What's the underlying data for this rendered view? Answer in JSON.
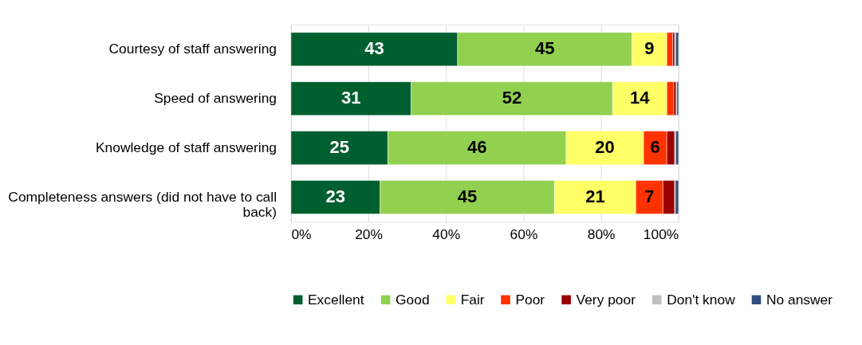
{
  "chart_data": {
    "type": "bar",
    "orientation": "horizontal",
    "stacked": true,
    "categories": [
      "Courtesy of staff answering",
      "Speed of answering",
      "Knowledge of staff answering",
      "Completeness answers (did not have to call back)"
    ],
    "series": [
      {
        "name": "Excellent",
        "color": "#005f2f",
        "values": [
          43,
          31,
          25,
          23
        ],
        "value_labels": [
          "43",
          "31",
          "25",
          "23"
        ]
      },
      {
        "name": "Good",
        "color": "#92d050",
        "values": [
          45,
          52,
          46,
          45
        ],
        "value_labels": [
          "45",
          "52",
          "46",
          "45"
        ]
      },
      {
        "name": "Fair",
        "color": "#ffff66",
        "values": [
          9,
          14,
          20,
          21
        ],
        "value_labels": [
          "9",
          "14",
          "20",
          "21"
        ]
      },
      {
        "name": "Poor",
        "color": "#ff3300",
        "values": [
          1.5,
          1.8,
          6,
          7
        ],
        "value_labels": [
          null,
          null,
          "6",
          "7"
        ]
      },
      {
        "name": "Very poor",
        "color": "#990000",
        "values": [
          0.5,
          0.6,
          2,
          3
        ],
        "value_labels": [
          null,
          null,
          null,
          null
        ]
      },
      {
        "name": "Don't know",
        "color": "#bfbfbf",
        "values": [
          0.3,
          0.2,
          0.3,
          0.2
        ],
        "value_labels": [
          null,
          null,
          null,
          null
        ]
      },
      {
        "name": "No answer",
        "color": "#2f4f7f",
        "values": [
          0.7,
          0.4,
          0.7,
          0.8
        ],
        "value_labels": [
          null,
          null,
          null,
          null
        ]
      }
    ],
    "xlim": [
      0,
      100
    ],
    "xticks": [
      {
        "value": 0,
        "label": "0%"
      },
      {
        "value": 20,
        "label": "20%"
      },
      {
        "value": 40,
        "label": "40%"
      },
      {
        "value": 60,
        "label": "60%"
      },
      {
        "value": 80,
        "label": "80%"
      },
      {
        "value": 100,
        "label": "100%"
      }
    ],
    "grid": "x",
    "legend": "bottom"
  }
}
